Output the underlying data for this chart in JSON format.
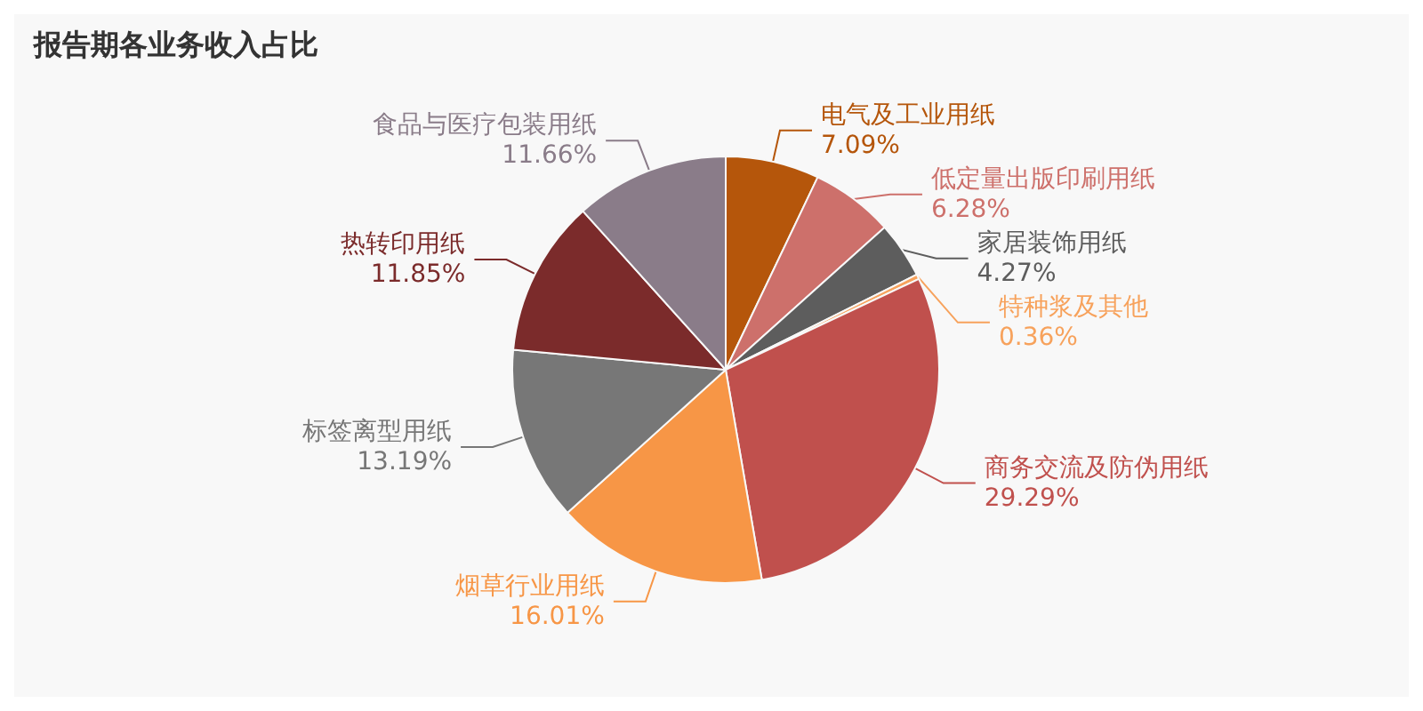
{
  "chart_data": {
    "type": "pie",
    "title": "报告期各业务收入占比",
    "categories": [
      "电气及工业用纸",
      "低定量出版印刷用纸",
      "家居装饰用纸",
      "特种浆及其他",
      "商务交流及防伪用纸",
      "烟草行业用纸",
      "标签离型用纸",
      "热转印用纸",
      "食品与医疗包装用纸"
    ],
    "values": [
      7.09,
      6.28,
      4.27,
      0.36,
      29.29,
      16.01,
      13.19,
      11.85,
      11.66
    ],
    "value_labels": [
      "7.09%",
      "6.28%",
      "4.27%",
      "0.36%",
      "29.29%",
      "16.01%",
      "13.19%",
      "11.85%",
      "11.66%"
    ],
    "colors": [
      "#b5560b",
      "#cd706b",
      "#5d5d5d",
      "#f7a25c",
      "#c0504d",
      "#f79646",
      "#777777",
      "#7b2b2b",
      "#8a7c89"
    ],
    "legend": false
  }
}
